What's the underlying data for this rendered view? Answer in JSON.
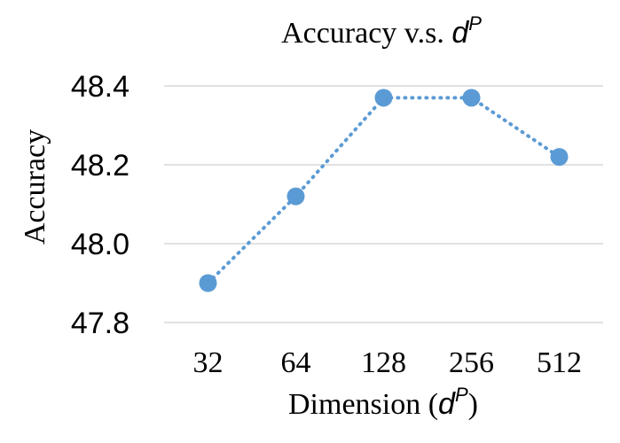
{
  "chart_data": {
    "type": "line",
    "title": {
      "prefix": "Accuracy v.s. ",
      "symbol": "d",
      "superscript": "P"
    },
    "xlabel": {
      "prefix": "Dimension (",
      "symbol": "d",
      "superscript": "P",
      "suffix": ")"
    },
    "ylabel": "Accuracy",
    "categories": [
      "32",
      "64",
      "128",
      "256",
      "512"
    ],
    "series": [
      {
        "values": [
          47.9,
          48.12,
          48.37,
          48.37,
          48.22
        ]
      }
    ],
    "ylim": [
      47.8,
      48.4
    ],
    "yticks": [
      "47.8",
      "48.0",
      "48.2",
      "48.4"
    ],
    "grid": true,
    "line_style": "dotted",
    "marker": "circle",
    "colors": {
      "series": "#5b9bd5",
      "grid": "#d9d9d9",
      "text": "#000000"
    }
  }
}
